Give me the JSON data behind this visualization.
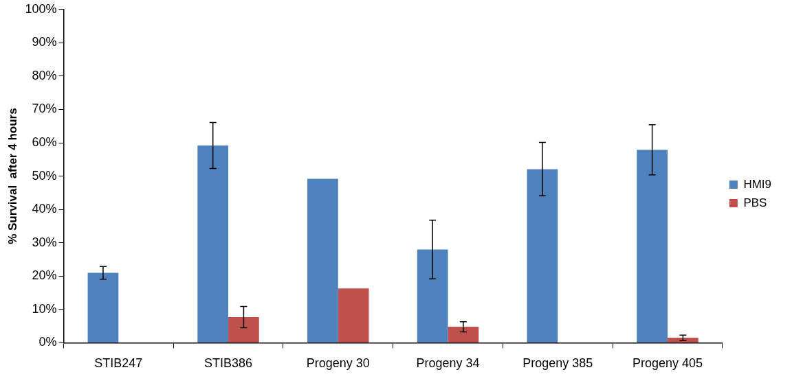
{
  "chart_data": {
    "type": "bar",
    "ylabel": "% Survival  after 4 hours",
    "categories": [
      "STIB247",
      "STIB386",
      "Progeny 30",
      "Progeny 34",
      "Progeny 385",
      "Progeny 405"
    ],
    "series": [
      {
        "name": "HMI9",
        "color": "#4f81bd",
        "values": [
          21,
          59.2,
          49.2,
          28,
          52.1,
          57.9
        ],
        "errors": [
          1.9,
          6.9,
          null,
          8.8,
          8,
          7.5
        ]
      },
      {
        "name": "PBS",
        "color": "#c0504d",
        "values": [
          0,
          7.7,
          16.3,
          4.8,
          0,
          1.5
        ],
        "errors": [
          null,
          3.2,
          null,
          1.5,
          null,
          0.8
        ]
      }
    ],
    "ylim": [
      0,
      100
    ],
    "yticks": [
      {
        "value": 0,
        "label": "0%"
      },
      {
        "value": 10,
        "label": "10%"
      },
      {
        "value": 20,
        "label": "20%"
      },
      {
        "value": 30,
        "label": "30%"
      },
      {
        "value": 40,
        "label": "40%"
      },
      {
        "value": 50,
        "label": "50%"
      },
      {
        "value": 60,
        "label": "60%"
      },
      {
        "value": 70,
        "label": "70%"
      },
      {
        "value": 80,
        "label": "80%"
      },
      {
        "value": 90,
        "label": "90%"
      },
      {
        "value": 100,
        "label": "100%"
      }
    ],
    "grid": false,
    "legend": "right"
  }
}
